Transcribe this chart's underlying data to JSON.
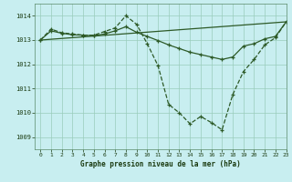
{
  "background_color": "#c8eef0",
  "grid_color": "#99ccbb",
  "line_color": "#2d5a27",
  "title": "Graphe pression niveau de la mer (hPa)",
  "xlim": [
    -0.5,
    23
  ],
  "ylim": [
    1008.5,
    1014.5
  ],
  "yticks": [
    1009,
    1010,
    1011,
    1012,
    1013,
    1014
  ],
  "xticks": [
    0,
    1,
    2,
    3,
    4,
    5,
    6,
    7,
    8,
    9,
    10,
    11,
    12,
    13,
    14,
    15,
    16,
    17,
    18,
    19,
    20,
    21,
    22,
    23
  ],
  "series": [
    {
      "x": [
        0,
        1,
        2,
        3,
        4,
        5,
        6,
        7,
        8,
        9,
        10,
        11,
        12,
        13,
        14,
        15,
        16,
        17,
        18,
        19,
        20,
        21,
        22,
        23
      ],
      "y": [
        1013.0,
        1013.45,
        1013.3,
        1013.25,
        1013.2,
        1013.2,
        1013.35,
        1013.5,
        1014.0,
        1013.65,
        1012.85,
        1011.95,
        1010.35,
        1010.0,
        1009.55,
        1009.85,
        1009.6,
        1009.3,
        1010.75,
        1011.7,
        1012.2,
        1012.8,
        1013.1,
        1013.75
      ]
    },
    {
      "x": [
        0,
        1,
        2,
        3,
        4,
        5,
        6,
        7,
        8,
        9,
        10,
        11,
        12,
        13,
        14,
        15,
        16,
        17,
        18,
        19,
        20,
        21,
        22,
        23
      ],
      "y": [
        1013.0,
        1013.38,
        1013.28,
        1013.22,
        1013.2,
        1013.18,
        1013.25,
        1013.38,
        1013.55,
        1013.32,
        1013.15,
        1012.98,
        1012.8,
        1012.65,
        1012.5,
        1012.4,
        1012.3,
        1012.2,
        1012.3,
        1012.75,
        1012.85,
        1013.05,
        1013.15,
        1013.75
      ]
    },
    {
      "x": [
        0,
        23
      ],
      "y": [
        1013.0,
        1013.75
      ]
    }
  ]
}
